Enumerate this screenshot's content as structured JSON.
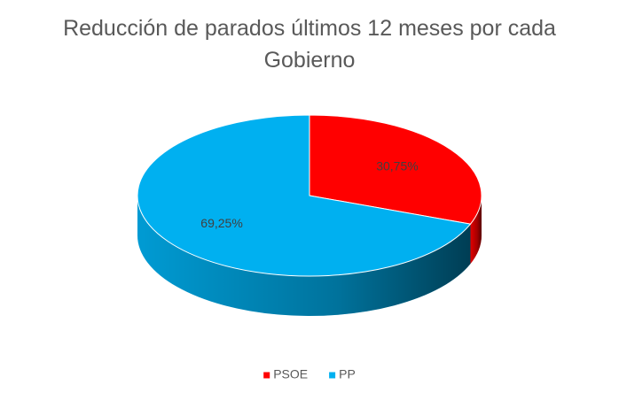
{
  "chart_data": {
    "type": "pie",
    "title": "Reducción de parados últimos 12 meses por cada Gobierno",
    "categories": [
      "PSOE",
      "PP"
    ],
    "values": [
      30.75,
      69.25
    ],
    "value_labels": [
      "30,75%",
      "69,25%"
    ],
    "colors": [
      "#ff0000",
      "#00b0f0"
    ],
    "legend": "bottom"
  }
}
